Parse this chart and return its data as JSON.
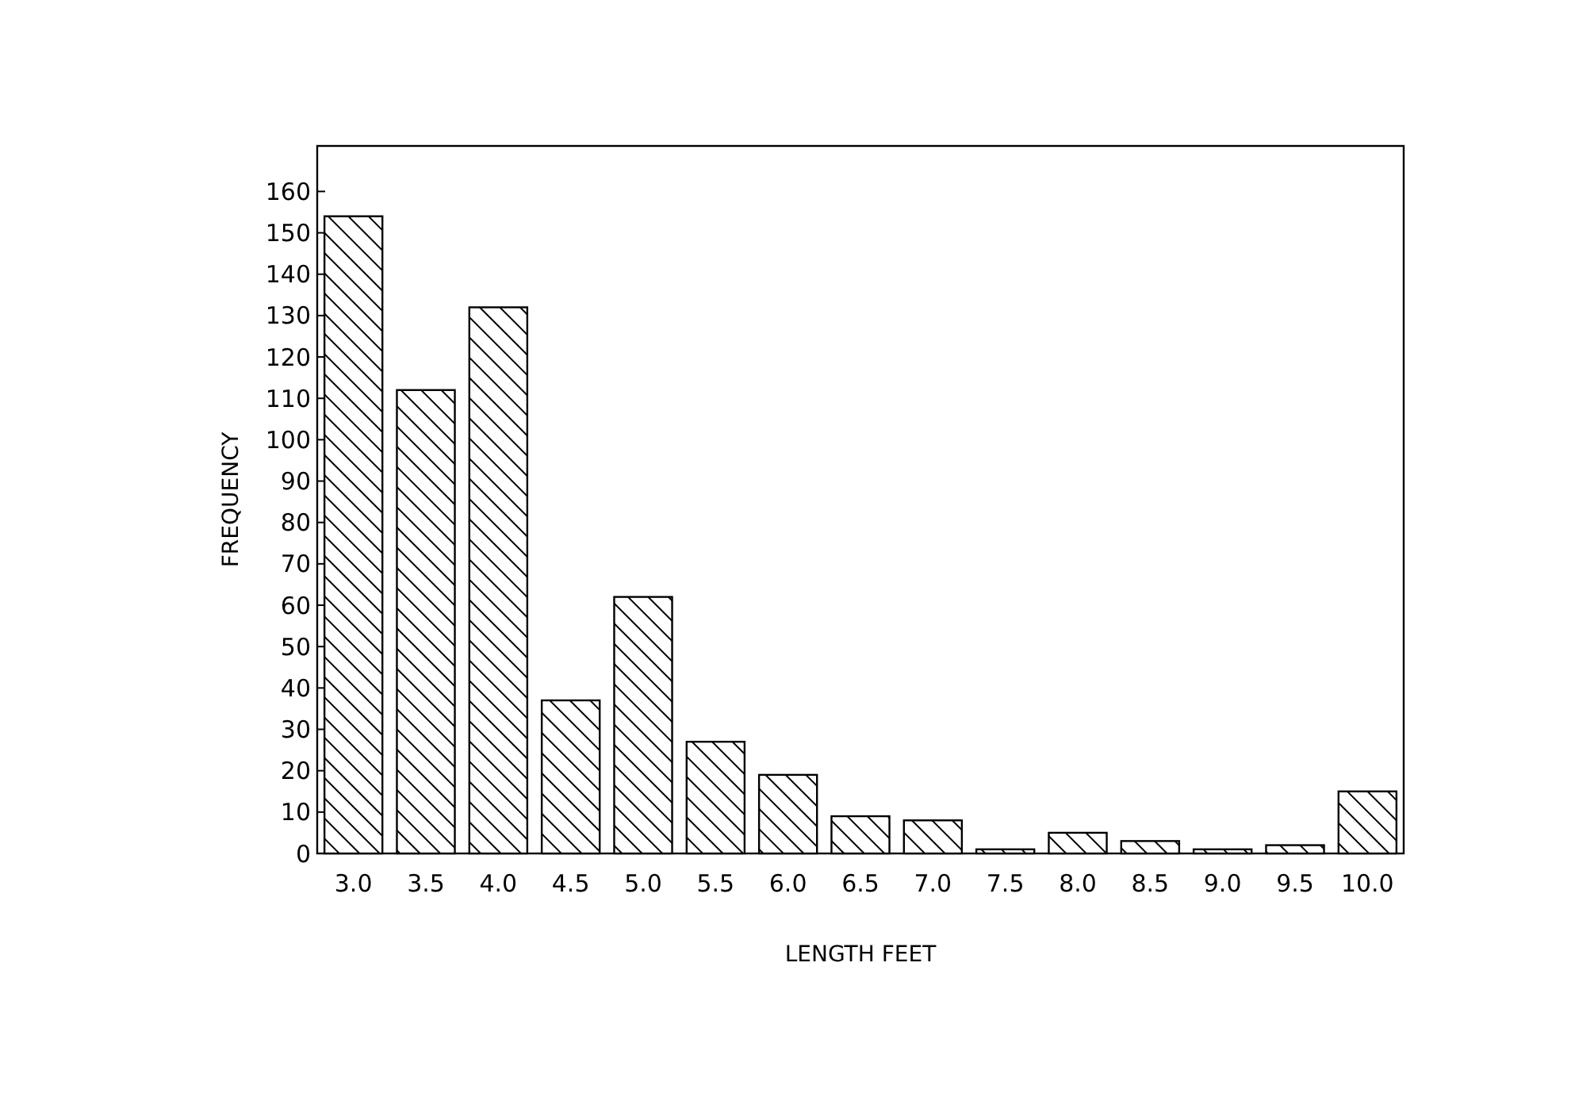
{
  "chart_data": {
    "type": "bar",
    "xlabel": "LENGTH FEET",
    "ylabel": "FREQUENCY",
    "categories": [
      "3.0",
      "3.5",
      "4.0",
      "4.5",
      "5.0",
      "5.5",
      "6.0",
      "6.5",
      "7.0",
      "7.5",
      "8.0",
      "8.5",
      "9.0",
      "9.5",
      "10.0"
    ],
    "values": [
      154,
      112,
      132,
      37,
      62,
      27,
      19,
      9,
      8,
      1,
      5,
      3,
      1,
      2,
      15
    ],
    "color": "#000000",
    "ylim": [
      0,
      171
    ],
    "yticks": [
      0,
      10,
      20,
      30,
      40,
      50,
      60,
      70,
      80,
      90,
      100,
      110,
      120,
      130,
      140,
      150,
      160
    ],
    "grid": false
  }
}
